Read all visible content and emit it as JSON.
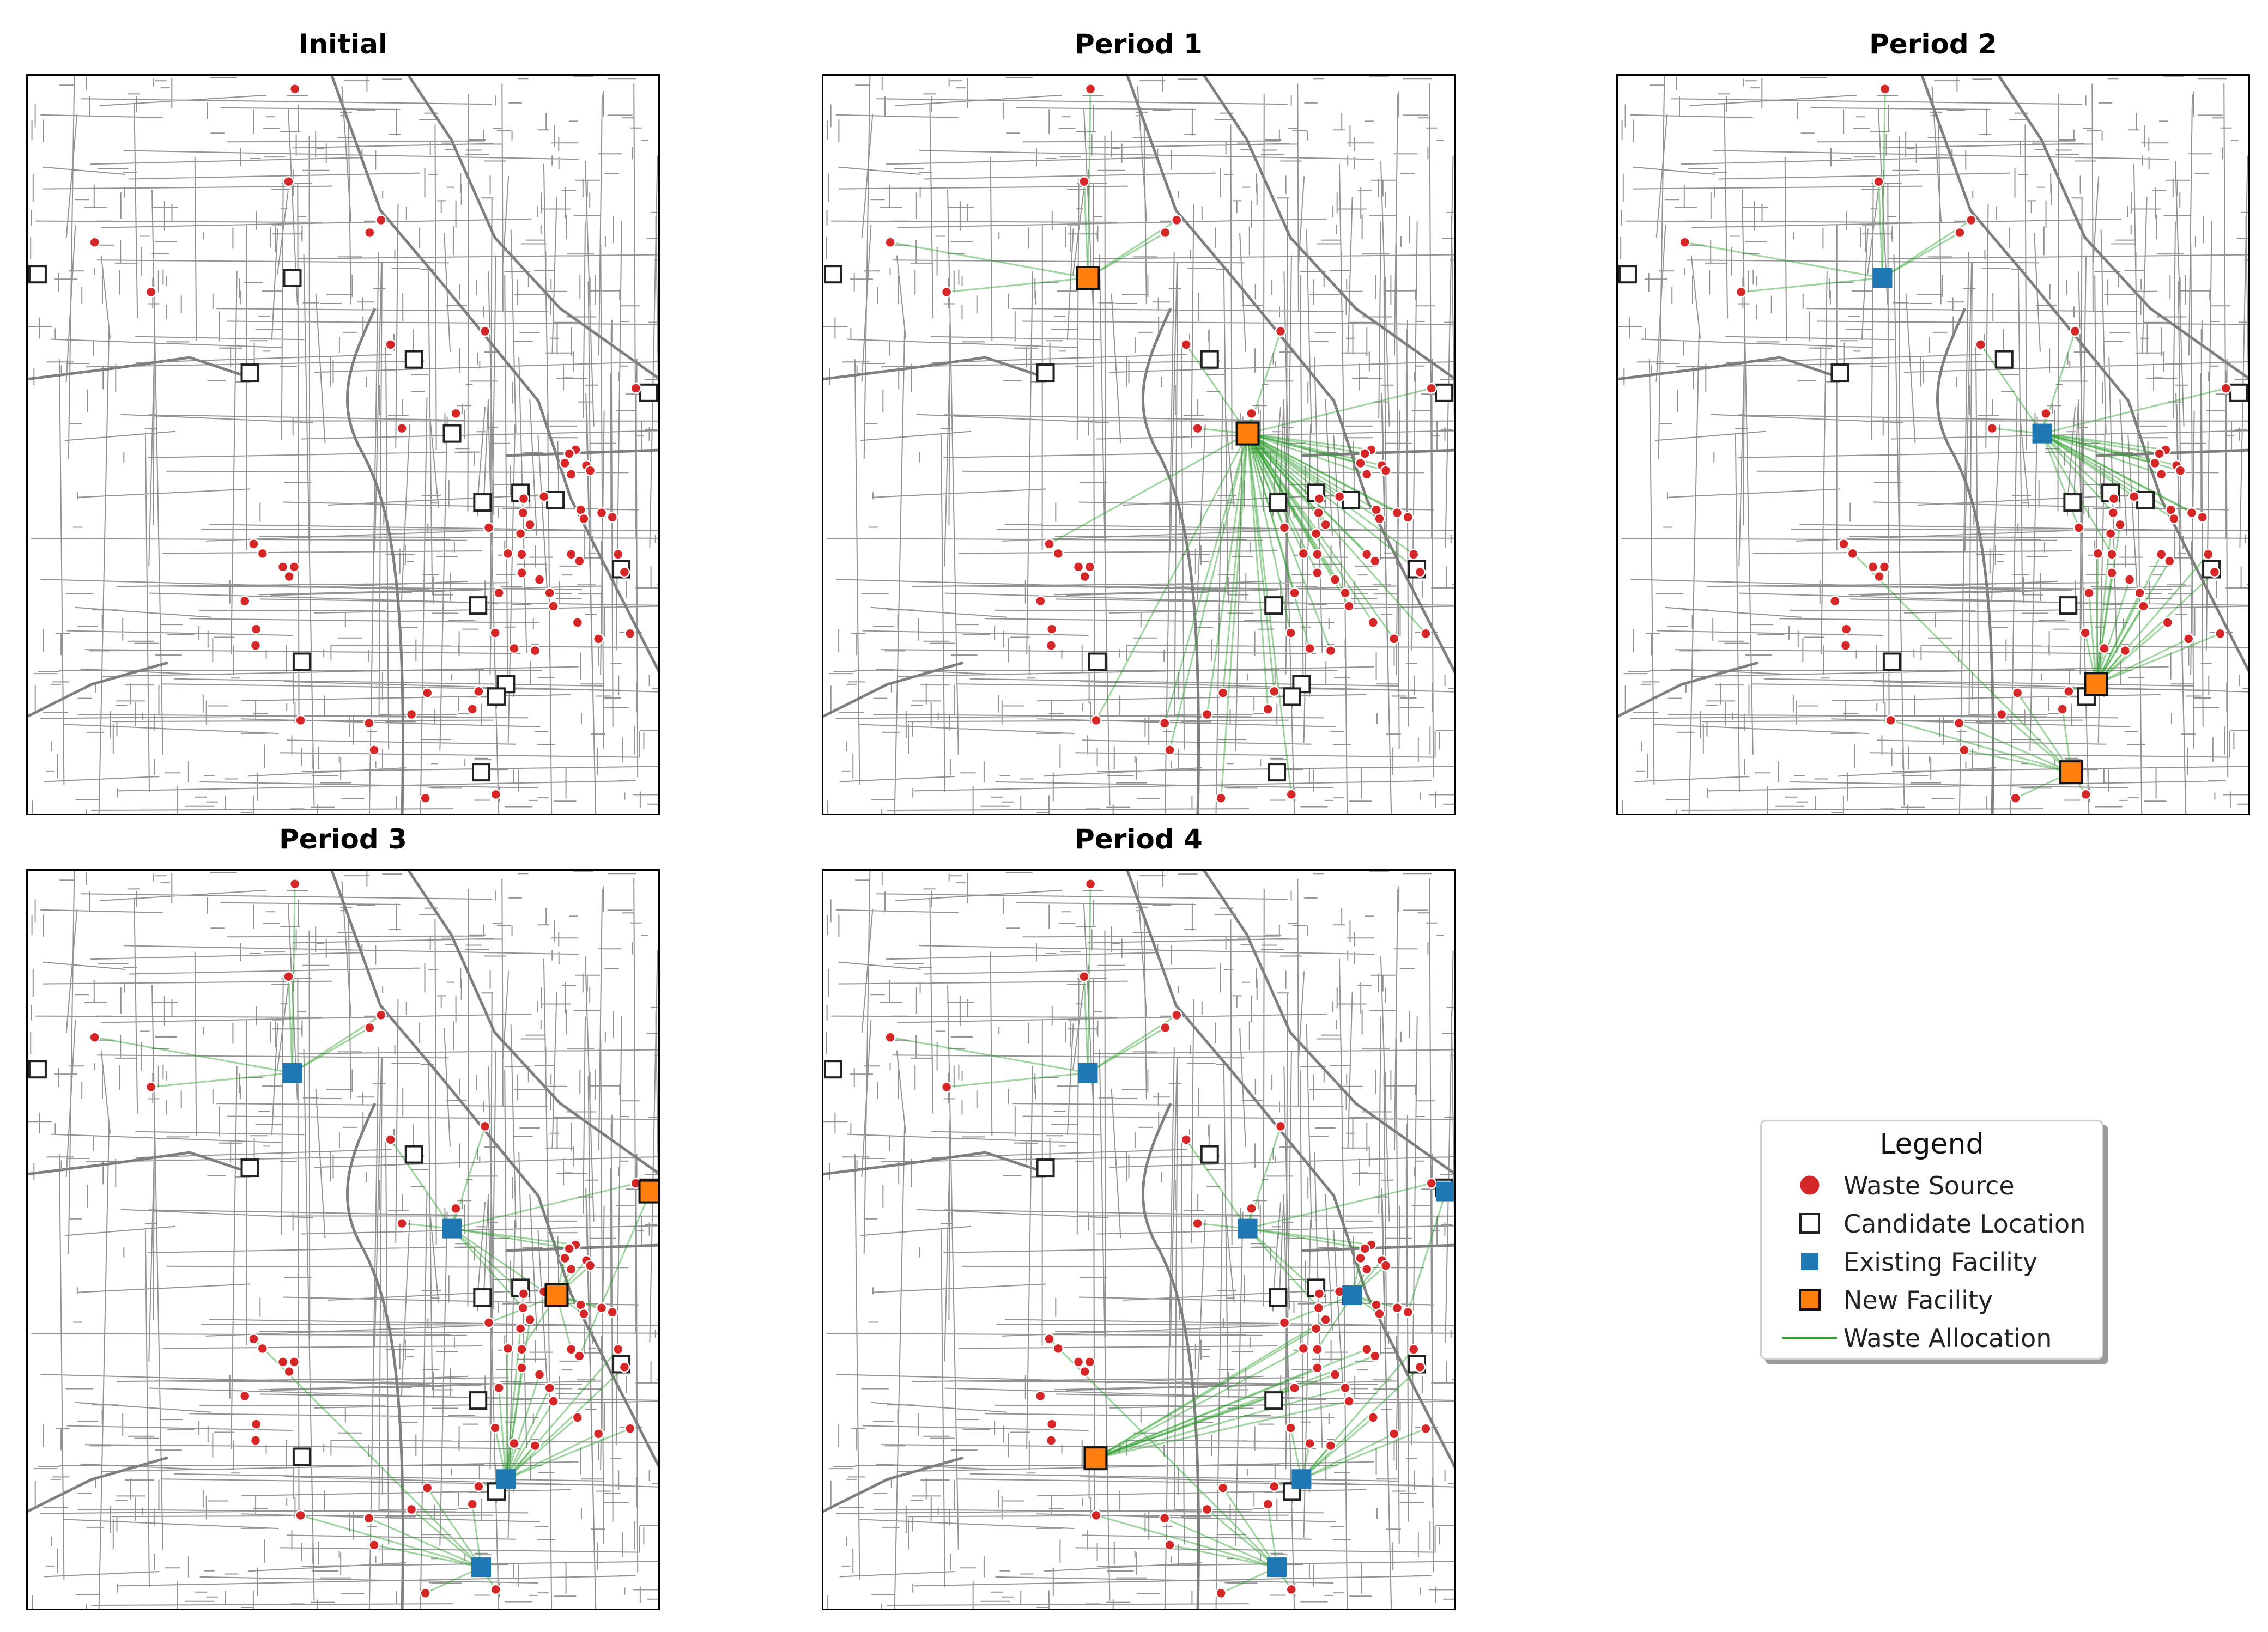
{
  "panels": [
    {
      "title": "Initial",
      "existing": [],
      "new": [],
      "links": []
    },
    {
      "title": "Period 1",
      "existing": [],
      "new": [
        [
          0.42,
          0.275
        ],
        [
          0.672,
          0.485
        ]
      ],
      "links": [
        [
          0.0,
          0
        ],
        [
          1.0,
          0
        ],
        [
          2.0,
          0
        ],
        [
          3.0,
          0
        ],
        [
          4.0,
          0
        ],
        [
          5.0,
          0
        ],
        [
          6.0,
          1
        ],
        [
          7.0,
          1
        ],
        [
          8.0,
          1
        ],
        [
          9.0,
          1
        ],
        [
          10.0,
          1
        ],
        [
          11.0,
          1
        ],
        [
          12.0,
          1
        ],
        [
          13.0,
          1
        ],
        [
          14.0,
          1
        ],
        [
          15.0,
          1
        ],
        [
          16.0,
          1
        ],
        [
          17.0,
          1
        ],
        [
          18.0,
          1
        ],
        [
          19.0,
          1
        ],
        [
          20.0,
          1
        ],
        [
          21.0,
          1
        ],
        [
          22.0,
          1
        ],
        [
          23.0,
          1
        ],
        [
          24.0,
          1
        ],
        [
          25.0,
          1
        ],
        [
          26.0,
          1
        ],
        [
          27.0,
          1
        ],
        [
          28.0,
          1
        ],
        [
          29.0,
          1
        ],
        [
          30.0,
          1
        ],
        [
          31.0,
          1
        ],
        [
          32.0,
          1
        ],
        [
          33.0,
          1
        ],
        [
          34.0,
          1
        ],
        [
          35.0,
          1
        ],
        [
          36.0,
          1
        ],
        [
          37.0,
          1
        ],
        [
          38.0,
          1
        ],
        [
          39.0,
          1
        ],
        [
          40.0,
          1
        ],
        [
          41.0,
          1
        ],
        [
          42.0,
          1
        ],
        [
          43.0,
          1
        ],
        [
          44.0,
          1
        ],
        [
          45.0,
          1
        ],
        [
          46.0,
          1
        ],
        [
          47.0,
          1
        ],
        [
          48.0,
          1
        ],
        [
          49.0,
          1
        ],
        [
          50.0,
          1
        ],
        [
          51.0,
          1
        ],
        [
          52.0,
          1
        ],
        [
          53.0,
          1
        ]
      ]
    },
    {
      "title": "Period 2",
      "existing": [
        [
          0.42,
          0.275
        ],
        [
          0.672,
          0.485
        ]
      ],
      "new": [
        [
          0.757,
          0.823
        ],
        [
          0.718,
          0.942
        ]
      ],
      "links": [
        [
          0.0,
          0
        ],
        [
          1.0,
          0
        ],
        [
          2.0,
          0
        ],
        [
          3.0,
          0
        ],
        [
          4.0,
          0
        ],
        [
          5.0,
          0
        ],
        [
          6.0,
          1
        ],
        [
          7.0,
          1
        ],
        [
          8.0,
          1
        ],
        [
          9.0,
          1
        ],
        [
          10.0,
          1
        ],
        [
          11.0,
          1
        ],
        [
          12.0,
          1
        ],
        [
          13.0,
          1
        ],
        [
          14.0,
          1
        ],
        [
          15.0,
          1
        ],
        [
          16.0,
          1
        ],
        [
          17.0,
          1
        ],
        [
          18.0,
          1
        ],
        [
          19.0,
          1
        ],
        [
          20.0,
          1
        ],
        [
          21.0,
          1
        ],
        [
          22.0,
          1
        ],
        [
          23.0,
          1
        ],
        [
          24.0,
          1
        ],
        [
          25.0,
          1
        ],
        [
          26.0,
          2
        ],
        [
          27.0,
          2
        ],
        [
          28.0,
          2
        ],
        [
          29.0,
          2
        ],
        [
          30.0,
          2
        ],
        [
          31.0,
          2
        ],
        [
          32.0,
          2
        ],
        [
          33.0,
          2
        ],
        [
          34.0,
          2
        ],
        [
          35.0,
          2
        ],
        [
          36.0,
          2
        ],
        [
          37.0,
          2
        ],
        [
          38.0,
          2
        ],
        [
          39.0,
          2
        ],
        [
          40.0,
          2
        ],
        [
          41.0,
          2
        ],
        [
          42.0,
          2
        ],
        [
          43.0,
          2
        ],
        [
          44.0,
          2
        ],
        [
          45.0,
          3
        ],
        [
          46.0,
          3
        ],
        [
          47.0,
          3
        ],
        [
          48.0,
          3
        ],
        [
          49.0,
          3
        ],
        [
          50.0,
          3
        ],
        [
          51.0,
          3
        ],
        [
          52.0,
          3
        ],
        [
          53.0,
          3
        ]
      ]
    },
    {
      "title": "Period 3",
      "existing": [
        [
          0.42,
          0.275
        ],
        [
          0.672,
          0.485
        ],
        [
          0.757,
          0.823
        ],
        [
          0.718,
          0.942
        ]
      ],
      "new": [
        [
          0.985,
          0.435
        ],
        [
          0.837,
          0.575
        ]
      ],
      "links": [
        [
          0.0,
          0
        ],
        [
          1.0,
          0
        ],
        [
          2.0,
          0
        ],
        [
          3.0,
          0
        ],
        [
          4.0,
          0
        ],
        [
          5.0,
          0
        ],
        [
          6.0,
          1
        ],
        [
          7.0,
          1
        ],
        [
          8.0,
          1
        ],
        [
          9.0,
          1
        ],
        [
          10.0,
          1
        ],
        [
          11.0,
          1
        ],
        [
          12.0,
          1
        ],
        [
          13.0,
          1
        ],
        [
          14.0,
          1
        ],
        [
          15.0,
          1
        ],
        [
          16.0,
          5
        ],
        [
          17.0,
          5
        ],
        [
          18.0,
          5
        ],
        [
          19.0,
          5
        ],
        [
          20.0,
          5
        ],
        [
          21.0,
          5
        ],
        [
          22.0,
          5
        ],
        [
          23.0,
          5
        ],
        [
          24.0,
          5
        ],
        [
          25.0,
          5
        ],
        [
          26.0,
          5
        ],
        [
          27.0,
          4
        ],
        [
          28.0,
          2
        ],
        [
          29.0,
          2
        ],
        [
          30.0,
          2
        ],
        [
          31.0,
          2
        ],
        [
          32.0,
          2
        ],
        [
          33.0,
          2
        ],
        [
          34.0,
          2
        ],
        [
          35.0,
          2
        ],
        [
          36.0,
          2
        ],
        [
          37.0,
          2
        ],
        [
          38.0,
          2
        ],
        [
          39.0,
          2
        ],
        [
          40.0,
          2
        ],
        [
          41.0,
          2
        ],
        [
          42.0,
          2
        ],
        [
          43.0,
          2
        ],
        [
          44.0,
          2
        ],
        [
          45.0,
          3
        ],
        [
          46.0,
          3
        ],
        [
          47.0,
          3
        ],
        [
          48.0,
          3
        ],
        [
          49.0,
          3
        ],
        [
          50.0,
          3
        ],
        [
          51.0,
          3
        ],
        [
          52.0,
          3
        ],
        [
          53.0,
          3
        ]
      ]
    },
    {
      "title": "Period 4",
      "existing": [
        [
          0.42,
          0.275
        ],
        [
          0.672,
          0.485
        ],
        [
          0.757,
          0.823
        ],
        [
          0.718,
          0.942
        ],
        [
          0.985,
          0.435
        ],
        [
          0.837,
          0.575
        ]
      ],
      "new": [
        [
          0.432,
          0.795
        ]
      ],
      "links": [
        [
          0.0,
          0
        ],
        [
          1.0,
          0
        ],
        [
          2.0,
          0
        ],
        [
          3.0,
          0
        ],
        [
          4.0,
          0
        ],
        [
          5.0,
          0
        ],
        [
          6.0,
          1
        ],
        [
          7.0,
          1
        ],
        [
          8.0,
          1
        ],
        [
          9.0,
          1
        ],
        [
          10.0,
          1
        ],
        [
          11.0,
          1
        ],
        [
          12.0,
          1
        ],
        [
          13.0,
          1
        ],
        [
          14.0,
          1
        ],
        [
          15.0,
          5
        ],
        [
          16.0,
          5
        ],
        [
          17.0,
          5
        ],
        [
          18.0,
          5
        ],
        [
          19.0,
          5
        ],
        [
          20.0,
          5
        ],
        [
          21.0,
          5
        ],
        [
          22.0,
          5
        ],
        [
          23.0,
          5
        ],
        [
          24.0,
          5
        ],
        [
          25.0,
          4
        ],
        [
          26.0,
          6
        ],
        [
          27.0,
          6
        ],
        [
          28.0,
          6
        ],
        [
          29.0,
          6
        ],
        [
          30.0,
          6
        ],
        [
          31.0,
          6
        ],
        [
          32.0,
          6
        ],
        [
          33.0,
          6
        ],
        [
          34.0,
          6
        ],
        [
          35.0,
          6
        ],
        [
          36.0,
          2
        ],
        [
          37.0,
          2
        ],
        [
          38.0,
          2
        ],
        [
          39.0,
          2
        ],
        [
          40.0,
          2
        ],
        [
          41.0,
          2
        ],
        [
          42.0,
          2
        ],
        [
          43.0,
          2
        ],
        [
          44.0,
          2
        ],
        [
          45.0,
          3
        ],
        [
          46.0,
          3
        ],
        [
          47.0,
          3
        ],
        [
          48.0,
          3
        ],
        [
          49.0,
          3
        ],
        [
          50.0,
          3
        ],
        [
          51.0,
          3
        ],
        [
          52.0,
          3
        ],
        [
          53.0,
          3
        ]
      ]
    }
  ],
  "sources": [
    [
      0.424,
      0.02
    ],
    [
      0.414,
      0.145
    ],
    [
      0.108,
      0.227
    ],
    [
      0.197,
      0.294
    ],
    [
      0.56,
      0.197
    ],
    [
      0.542,
      0.214
    ],
    [
      0.724,
      0.347
    ],
    [
      0.575,
      0.365
    ],
    [
      0.678,
      0.458
    ],
    [
      0.593,
      0.478
    ],
    [
      0.962,
      0.424
    ],
    [
      0.867,
      0.507
    ],
    [
      0.857,
      0.512
    ],
    [
      0.785,
      0.573
    ],
    [
      0.784,
      0.592
    ],
    [
      0.817,
      0.57
    ],
    [
      0.85,
      0.525
    ],
    [
      0.86,
      0.54
    ],
    [
      0.884,
      0.528
    ],
    [
      0.89,
      0.535
    ],
    [
      0.782,
      0.648
    ],
    [
      0.73,
      0.612
    ],
    [
      0.875,
      0.588
    ],
    [
      0.88,
      0.6
    ],
    [
      0.908,
      0.592
    ],
    [
      0.925,
      0.598
    ],
    [
      0.86,
      0.648
    ],
    [
      0.873,
      0.657
    ],
    [
      0.795,
      0.608
    ],
    [
      0.78,
      0.62
    ],
    [
      0.76,
      0.647
    ],
    [
      0.746,
      0.7
    ],
    [
      0.782,
      0.673
    ],
    [
      0.81,
      0.682
    ],
    [
      0.826,
      0.7
    ],
    [
      0.832,
      0.718
    ],
    [
      0.74,
      0.754
    ],
    [
      0.77,
      0.775
    ],
    [
      0.803,
      0.778
    ],
    [
      0.87,
      0.74
    ],
    [
      0.903,
      0.762
    ],
    [
      0.934,
      0.648
    ],
    [
      0.944,
      0.672
    ],
    [
      0.953,
      0.755
    ],
    [
      0.714,
      0.833
    ],
    [
      0.704,
      0.857
    ],
    [
      0.633,
      0.835
    ],
    [
      0.608,
      0.864
    ],
    [
      0.433,
      0.872
    ],
    [
      0.549,
      0.912
    ],
    [
      0.541,
      0.876
    ],
    [
      0.63,
      0.977
    ],
    [
      0.741,
      0.972
    ],
    [
      0.359,
      0.634
    ],
    [
      0.373,
      0.647
    ],
    [
      0.405,
      0.665
    ],
    [
      0.415,
      0.678
    ],
    [
      0.423,
      0.665
    ],
    [
      0.363,
      0.749
    ],
    [
      0.362,
      0.771
    ],
    [
      0.345,
      0.711
    ]
  ],
  "candidates": [
    [
      0.018,
      0.27
    ],
    [
      0.42,
      0.275
    ],
    [
      0.353,
      0.403
    ],
    [
      0.612,
      0.385
    ],
    [
      0.672,
      0.485
    ],
    [
      0.982,
      0.43
    ],
    [
      0.78,
      0.565
    ],
    [
      0.835,
      0.575
    ],
    [
      0.72,
      0.578
    ],
    [
      0.939,
      0.668
    ],
    [
      0.713,
      0.717
    ],
    [
      0.435,
      0.793
    ],
    [
      0.757,
      0.823
    ],
    [
      0.742,
      0.84
    ],
    [
      0.718,
      0.942
    ]
  ],
  "legend": {
    "title": "Legend",
    "items": [
      {
        "label": "Waste Source",
        "symbol": "waste-source"
      },
      {
        "label": "Candidate Location",
        "symbol": "candidate-location"
      },
      {
        "label": "Existing Facility",
        "symbol": "existing-facility"
      },
      {
        "label": "New Facility",
        "symbol": "new-facility"
      },
      {
        "label": "Waste Allocation",
        "symbol": "waste-allocation"
      }
    ]
  },
  "colors": {
    "waste_source": "#d62728",
    "candidate_edge": "#222222",
    "existing_facility": "#1f77b4",
    "new_facility": "#ff7f0e",
    "allocation": "#2ca02c",
    "roads": "#7f7f7f"
  }
}
